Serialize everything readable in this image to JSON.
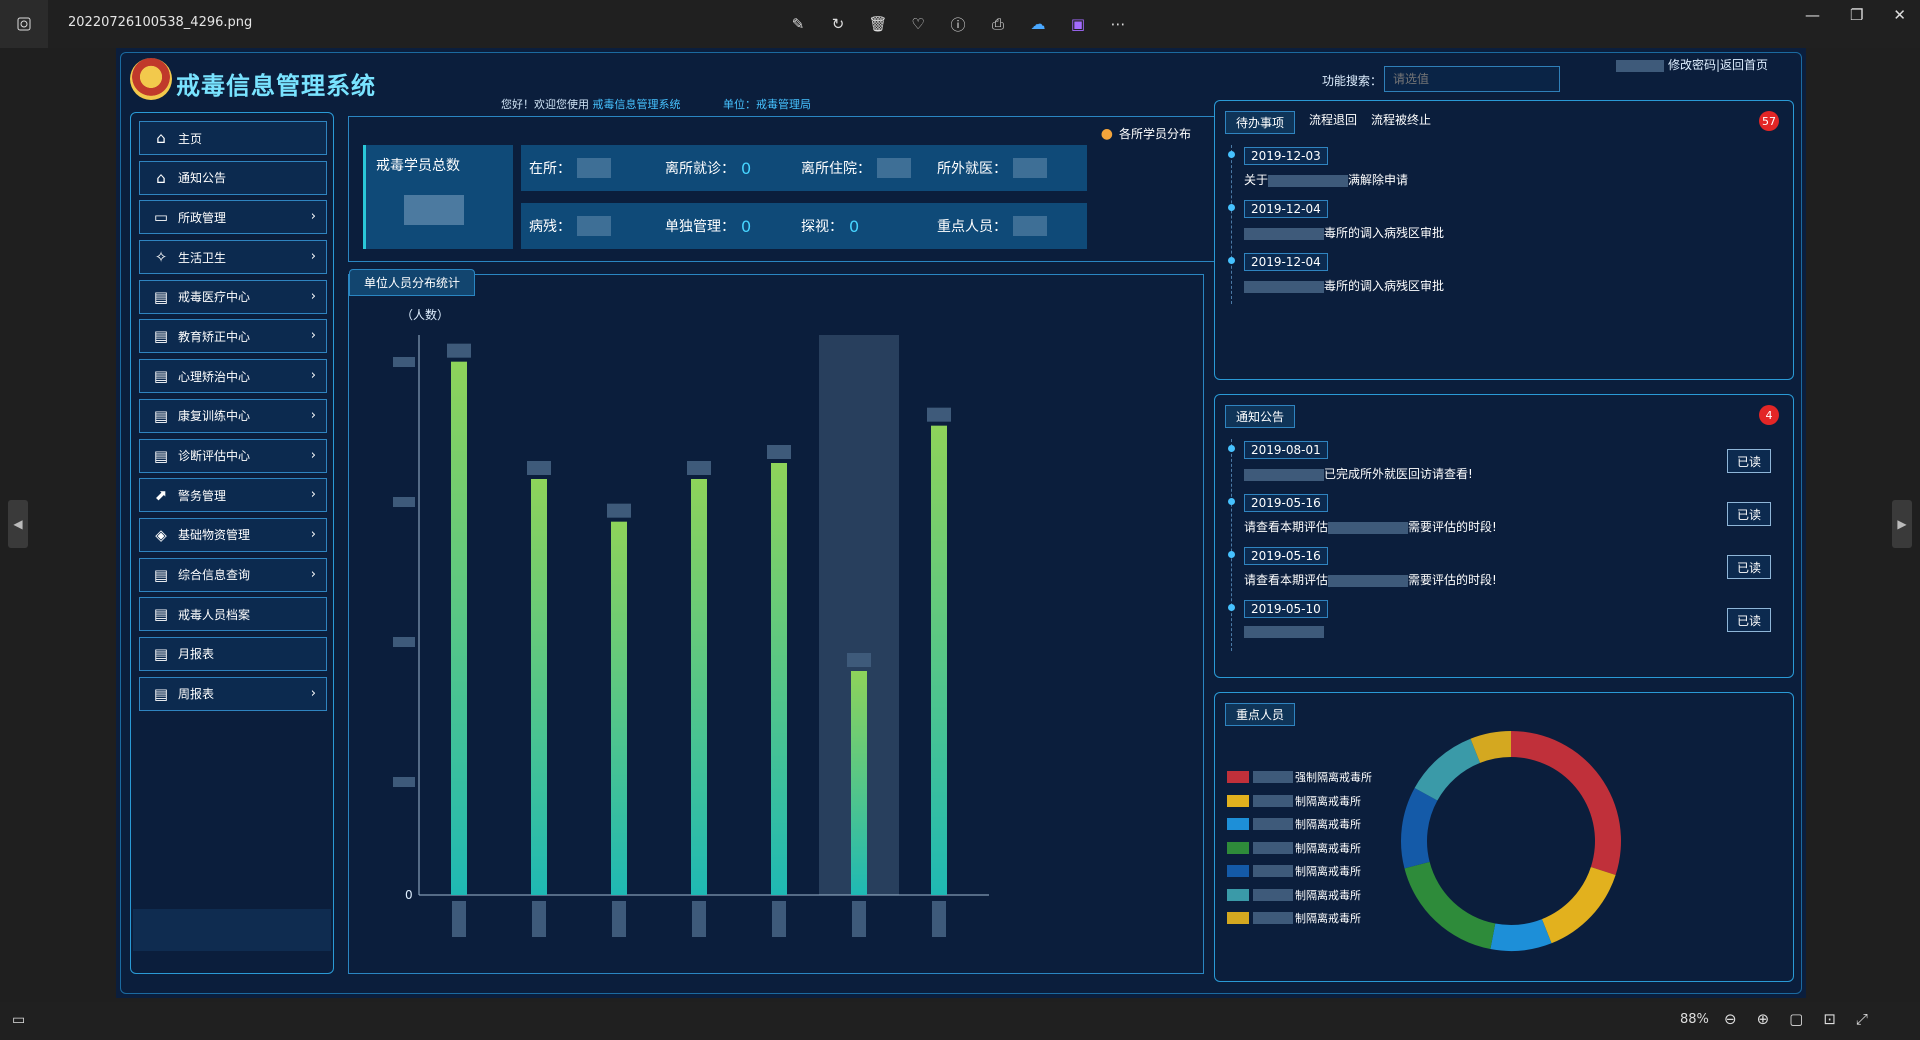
{
  "viewer": {
    "filename": "20220726100538_4296.png",
    "zoom": "88%",
    "tools": [
      "edit-icon",
      "rotate-icon",
      "delete-icon",
      "favorite-icon",
      "info-icon",
      "print-icon",
      "cloud-icon",
      "clipchamp-icon",
      "more-icon"
    ]
  },
  "app": {
    "title": "戒毒信息管理系统",
    "welcome_prefix": "您好！欢迎您使用",
    "welcome_system": "戒毒信息管理系统",
    "unit_text": "单位：戒毒管理局",
    "search_label": "功能搜索：",
    "search_placeholder": "请选值",
    "user_links": "修改密码|返回首页"
  },
  "sidebar": {
    "items": [
      {
        "label": "主页",
        "icon": "home-icon",
        "chevron": false
      },
      {
        "label": "通知公告",
        "icon": "home-icon",
        "chevron": false
      },
      {
        "label": "所政管理",
        "icon": "monitor-icon",
        "chevron": true
      },
      {
        "label": "生活卫生",
        "icon": "clean-icon",
        "chevron": true
      },
      {
        "label": "戒毒医疗中心",
        "icon": "document-icon",
        "chevron": true
      },
      {
        "label": "教育矫正中心",
        "icon": "document-icon",
        "chevron": true
      },
      {
        "label": "心理矫治中心",
        "icon": "document-icon",
        "chevron": true
      },
      {
        "label": "康复训练中心",
        "icon": "document-icon",
        "chevron": true
      },
      {
        "label": "诊断评估中心",
        "icon": "document-icon",
        "chevron": true
      },
      {
        "label": "警务管理",
        "icon": "chart-icon",
        "chevron": true
      },
      {
        "label": "基础物资管理",
        "icon": "stack-icon",
        "chevron": true
      },
      {
        "label": "综合信息查询",
        "icon": "document-icon",
        "chevron": true
      },
      {
        "label": "戒毒人员档案",
        "icon": "document-icon",
        "chevron": false
      },
      {
        "label": "月报表",
        "icon": "document-icon",
        "chevron": false
      },
      {
        "label": "周报表",
        "icon": "document-icon",
        "chevron": true
      }
    ]
  },
  "stats": {
    "dist_link": "各所学员分布",
    "total_label": "戒毒学员总数",
    "cells": [
      {
        "label": "在所：",
        "value": ""
      },
      {
        "label": "离所就诊：",
        "value": "0"
      },
      {
        "label": "离所住院：",
        "value": ""
      },
      {
        "label": "所外就医：",
        "value": ""
      },
      {
        "label": "病残：",
        "value": ""
      },
      {
        "label": "单独管理：",
        "value": "0"
      },
      {
        "label": "探视：",
        "value": "0"
      },
      {
        "label": "重点人员：",
        "value": ""
      }
    ]
  },
  "chart_panel": {
    "tab": "单位人员分布统计"
  },
  "chart_data": {
    "type": "bar",
    "ylabel": "（人数）",
    "ytick_zero": "0",
    "values": [
      100,
      78,
      70,
      78,
      81,
      42,
      88
    ],
    "highlight_index": 5,
    "ylim": [
      0,
      105
    ]
  },
  "todo": {
    "tabs": [
      "待办事项",
      "流程退回",
      "流程被终止"
    ],
    "badge": "57",
    "items": [
      {
        "date": "2019-12-03",
        "prefix": "关于",
        "suffix": "满解除申请"
      },
      {
        "date": "2019-12-04",
        "prefix": "",
        "suffix": "毒所的调入病残区审批"
      },
      {
        "date": "2019-12-04",
        "prefix": "",
        "suffix": "毒所的调入病残区审批"
      }
    ]
  },
  "notice": {
    "tab": "通知公告",
    "badge": "4",
    "read_label": "已读",
    "items": [
      {
        "date": "2019-08-01",
        "prefix": "",
        "suffix": "已完成所外就医回访请查看!"
      },
      {
        "date": "2019-05-16",
        "prefix": "请查看本期评估",
        "suffix": "需要评估的时段!"
      },
      {
        "date": "2019-05-16",
        "prefix": "请查看本期评估",
        "suffix": "需要评估的时段!"
      },
      {
        "date": "2019-05-10",
        "prefix": "",
        "suffix": ""
      }
    ]
  },
  "key_persons": {
    "tab": "重点人员",
    "legend": [
      {
        "label": "强制隔离戒毒所",
        "color": "#c0303a"
      },
      {
        "label": "制隔离戒毒所",
        "color": "#e2b11e"
      },
      {
        "label": "制隔离戒毒所",
        "color": "#1d8fd8"
      },
      {
        "label": "制隔离戒毒所",
        "color": "#2e8b3a"
      },
      {
        "label": "制隔离戒毒所",
        "color": "#145aa8"
      },
      {
        "label": "制隔离戒毒所",
        "color": "#3a9aa8"
      },
      {
        "label": "制隔离戒毒所",
        "color": "#d4a820"
      }
    ],
    "donut": [
      30,
      14,
      9,
      18,
      12,
      11,
      6
    ]
  }
}
